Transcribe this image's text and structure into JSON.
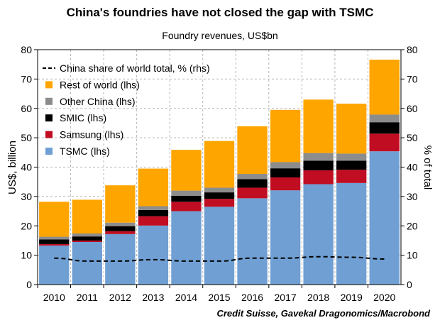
{
  "title": "China's foundries have not closed the gap with TSMC",
  "subtitle": "Foundry revenues, US$bn",
  "credit": "Credit Suisse, Gavekal Dragonomics/Macrobond",
  "chart_data": {
    "type": "bar",
    "stacked": true,
    "categories": [
      "2010",
      "2011",
      "2012",
      "2013",
      "2014",
      "2015",
      "2016",
      "2017",
      "2018",
      "2019",
      "2020"
    ],
    "ylabel_left": "US$, billion",
    "ylabel_right": "% of total",
    "ylim": [
      0,
      80
    ],
    "yticks": [
      0,
      10,
      20,
      30,
      40,
      50,
      60,
      70,
      80
    ],
    "grid": true,
    "legend_position": "top-left",
    "colors": {
      "TSMC (lhs)": "#6f9fd3",
      "Samsung (lhs)": "#c00d22",
      "SMIC (lhs)": "#000000",
      "Other China (lhs)": "#8c8c8c",
      "Rest of world (lhs)": "#ffa500",
      "China share of world total, % (rhs)": "#000000"
    },
    "legend": [
      "China share of world total, % (rhs)",
      "Rest of world (lhs)",
      "Other China (lhs)",
      "SMIC (lhs)",
      "Samsung (lhs)",
      "TSMC (lhs)"
    ],
    "series": [
      {
        "name": "TSMC (lhs)",
        "values": [
          13.3,
          14.5,
          17.2,
          20.1,
          25.0,
          26.5,
          29.4,
          32.1,
          34.2,
          34.6,
          45.4
        ]
      },
      {
        "name": "Samsung (lhs)",
        "values": [
          0.5,
          0.5,
          1.0,
          3.2,
          3.2,
          2.7,
          3.6,
          4.4,
          4.7,
          4.5,
          6.0
        ]
      },
      {
        "name": "SMIC (lhs)",
        "values": [
          1.6,
          1.4,
          1.7,
          2.1,
          2.0,
          2.2,
          2.9,
          3.1,
          3.3,
          3.1,
          3.9
        ]
      },
      {
        "name": "Other China (lhs)",
        "values": [
          0.9,
          1.0,
          1.2,
          1.3,
          1.8,
          1.6,
          1.8,
          2.1,
          2.6,
          2.4,
          2.6
        ]
      },
      {
        "name": "Rest of world (lhs)",
        "values": [
          11.9,
          11.5,
          12.7,
          12.8,
          13.9,
          15.9,
          16.2,
          17.8,
          18.2,
          17.0,
          18.7
        ]
      },
      {
        "name": "China share of world total, % (rhs)",
        "axis": "right",
        "style": "dashed-line",
        "values": [
          9.0,
          8.0,
          8.0,
          8.5,
          8.0,
          8.0,
          9.0,
          9.0,
          9.5,
          9.3,
          8.7
        ]
      }
    ]
  }
}
